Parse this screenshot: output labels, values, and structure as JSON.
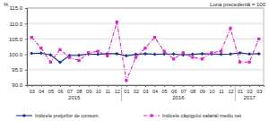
{
  "chart_data": {
    "type": "line",
    "y_label": "%",
    "annotation": "Luna precedentă = 100",
    "categories": [
      "03",
      "04",
      "05",
      "06",
      "07",
      "08",
      "09",
      "10",
      "11",
      "12",
      "01",
      "02",
      "03",
      "04",
      "05",
      "06",
      "07",
      "08",
      "09",
      "10",
      "11",
      "12",
      "01",
      "02",
      "03"
    ],
    "groups": [
      {
        "label": "2015",
        "count": 10
      },
      {
        "label": "2016",
        "count": 12
      },
      {
        "label": "2017",
        "count": 3
      }
    ],
    "series": [
      {
        "name": "Indicele preţurilor de consum",
        "color": "#1f2f8c",
        "marker": "diamond",
        "line_style": "solid",
        "values": [
          100.3,
          100.4,
          99.8,
          97.4,
          99.6,
          99.7,
          100.1,
          100.0,
          100.2,
          100.2,
          99.5,
          100.0,
          100.2,
          100.0,
          100.1,
          100.1,
          99.8,
          100.0,
          100.2,
          100.1,
          100.0,
          100.1,
          100.5,
          100.1,
          100.2
        ]
      },
      {
        "name": "Indicele câştigului salarial mediu net",
        "color": "#e01fc8",
        "marker": "square",
        "line_style": "dashdot",
        "values": [
          105.5,
          102.0,
          97.5,
          101.5,
          99.0,
          98.0,
          100.5,
          101.0,
          99.5,
          110.5,
          91.5,
          99.0,
          102.0,
          105.5,
          101.0,
          98.5,
          100.5,
          99.0,
          98.5,
          100.5,
          101.0,
          108.5,
          97.5,
          97.5,
          105.0
        ]
      }
    ],
    "ylim": [
      90,
      115
    ],
    "yticks": [
      {
        "value": 90,
        "label": "90.0"
      },
      {
        "value": 95,
        "label": "95.0"
      },
      {
        "value": 100,
        "label": "100.0"
      },
      {
        "value": 105,
        "label": "105.0"
      },
      {
        "value": 110,
        "label": "110.0"
      },
      {
        "value": 115,
        "label": "115.0"
      }
    ],
    "grid": true,
    "legend": "bottom"
  }
}
